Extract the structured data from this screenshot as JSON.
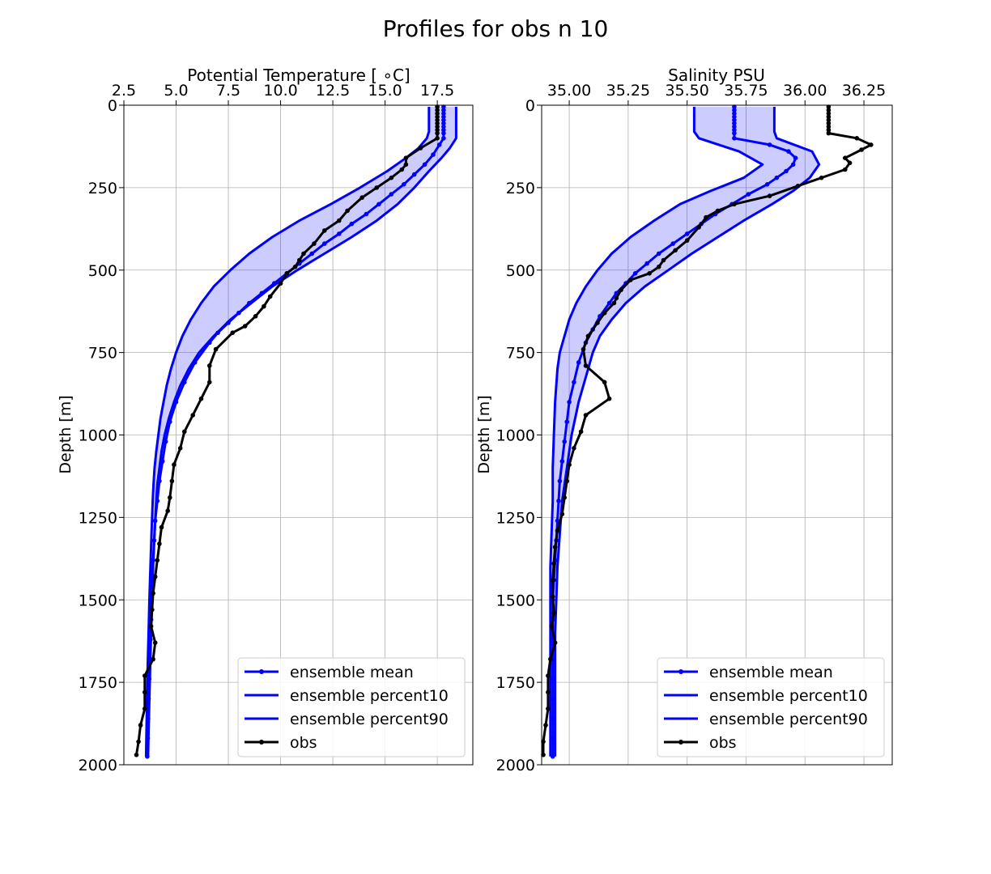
{
  "figure_title": "Profiles for obs n 10",
  "chart_data": [
    {
      "type": "line",
      "title": "Potential Temperature [$^\\circ$C]",
      "title_display": "Potential Temperature [ ∘C]",
      "xlabel": "",
      "ylabel": "Depth [m]",
      "xaxis_position": "top",
      "y_inverted": true,
      "xlim": [
        2.5,
        19.2
      ],
      "ylim": [
        2000,
        0
      ],
      "xticks": [
        "2.5",
        "5.0",
        "7.5",
        "10.0",
        "12.5",
        "15.0",
        "17.5"
      ],
      "yticks": [
        "0",
        "250",
        "500",
        "750",
        "1000",
        "1250",
        "1500",
        "1750",
        "2000"
      ],
      "grid": true,
      "legend_position": "lower-right",
      "series": [
        {
          "name": "ensemble mean",
          "color": "#0000ff",
          "marker": "dot",
          "depth": [
            5,
            15,
            25,
            35,
            45,
            55,
            65,
            75,
            85,
            100,
            120,
            150,
            180,
            210,
            240,
            270,
            300,
            330,
            360,
            390,
            420,
            450,
            480,
            510,
            540,
            570,
            600,
            630,
            660,
            690,
            720,
            780,
            840,
            900,
            960,
            1020,
            1080,
            1140,
            1200,
            1260,
            1320,
            1380,
            1440,
            1500,
            1560,
            1620,
            1680,
            1740,
            1800,
            1860,
            1920,
            1975
          ],
          "values": [
            17.8,
            17.8,
            17.8,
            17.8,
            17.8,
            17.8,
            17.8,
            17.8,
            17.8,
            17.8,
            17.6,
            17.3,
            16.9,
            16.4,
            15.9,
            15.3,
            14.7,
            14.1,
            13.4,
            12.8,
            12.1,
            11.5,
            10.9,
            10.3,
            9.7,
            9.1,
            8.5,
            8.0,
            7.5,
            7.0,
            6.6,
            5.9,
            5.4,
            5.0,
            4.7,
            4.5,
            4.35,
            4.2,
            4.1,
            4.0,
            3.95,
            3.9,
            3.85,
            3.82,
            3.8,
            3.77,
            3.74,
            3.71,
            3.68,
            3.66,
            3.64,
            3.62
          ]
        },
        {
          "name": "ensemble percent10",
          "color": "#0000ff",
          "marker": "none",
          "depth": [
            5,
            80,
            100,
            130,
            160,
            200,
            250,
            300,
            350,
            400,
            450,
            500,
            550,
            600,
            650,
            700,
            750,
            800,
            850,
            900,
            950,
            1000,
            1050,
            1100,
            1150,
            1200,
            1300,
            1400,
            1500,
            1600,
            1700,
            1800,
            1900,
            1975
          ],
          "values": [
            17.1,
            17.1,
            17.0,
            16.6,
            16.0,
            15.1,
            13.8,
            12.4,
            10.9,
            9.6,
            8.5,
            7.6,
            6.8,
            6.2,
            5.7,
            5.3,
            5.0,
            4.75,
            4.55,
            4.4,
            4.25,
            4.15,
            4.05,
            3.97,
            3.92,
            3.88,
            3.82,
            3.77,
            3.72,
            3.68,
            3.64,
            3.61,
            3.58,
            3.56
          ]
        },
        {
          "name": "ensemble percent90",
          "color": "#0000ff",
          "marker": "none",
          "depth": [
            5,
            80,
            100,
            130,
            160,
            200,
            250,
            300,
            350,
            400,
            450,
            500,
            550,
            600,
            650,
            700,
            750,
            800,
            850,
            900,
            950,
            1000,
            1050,
            1100,
            1150,
            1200,
            1300,
            1400,
            1500,
            1600,
            1700,
            1800,
            1900,
            1975
          ],
          "values": [
            18.4,
            18.4,
            18.4,
            18.1,
            17.7,
            17.1,
            16.4,
            15.6,
            14.6,
            13.4,
            12.1,
            10.8,
            9.6,
            8.6,
            7.6,
            6.8,
            6.1,
            5.6,
            5.2,
            4.9,
            4.65,
            4.45,
            4.3,
            4.2,
            4.1,
            4.05,
            3.97,
            3.9,
            3.85,
            3.8,
            3.76,
            3.72,
            3.68,
            3.66
          ]
        },
        {
          "name": "obs",
          "color": "#000000",
          "marker": "dot",
          "depth": [
            5,
            15,
            25,
            35,
            45,
            55,
            65,
            75,
            85,
            100,
            130,
            160,
            180,
            195,
            220,
            250,
            280,
            320,
            350,
            380,
            420,
            450,
            470,
            490,
            510,
            540,
            580,
            610,
            640,
            670,
            690,
            740,
            790,
            840,
            890,
            940,
            990,
            1040,
            1090,
            1140,
            1190,
            1230,
            1280,
            1330,
            1380,
            1430,
            1480,
            1530,
            1580,
            1630,
            1680,
            1730,
            1780,
            1830,
            1880,
            1930,
            1970
          ],
          "values": [
            17.5,
            17.5,
            17.5,
            17.5,
            17.5,
            17.5,
            17.5,
            17.5,
            17.5,
            17.5,
            16.7,
            16.0,
            16.0,
            15.8,
            15.3,
            14.6,
            13.9,
            13.2,
            12.8,
            12.1,
            11.6,
            11.1,
            10.9,
            10.7,
            10.3,
            10.0,
            9.5,
            9.2,
            8.8,
            8.3,
            7.7,
            6.9,
            6.6,
            6.6,
            6.2,
            5.8,
            5.4,
            5.2,
            4.9,
            4.8,
            4.7,
            4.6,
            4.3,
            4.2,
            4.1,
            4.0,
            3.9,
            3.85,
            3.8,
            4.0,
            3.9,
            3.5,
            3.5,
            3.5,
            3.3,
            3.2,
            3.1
          ]
        }
      ]
    },
    {
      "type": "line",
      "title": "Salinity PSU",
      "xlabel": "",
      "ylabel": "Depth [m]",
      "xaxis_position": "top",
      "y_inverted": true,
      "xlim": [
        34.883,
        36.37
      ],
      "ylim": [
        2000,
        0
      ],
      "xticks": [
        "35.00",
        "35.25",
        "35.50",
        "35.75",
        "36.00",
        "36.25"
      ],
      "yticks": [
        "0",
        "250",
        "500",
        "750",
        "1000",
        "1250",
        "1500",
        "1750",
        "2000"
      ],
      "grid": true,
      "legend_position": "lower-right",
      "series": [
        {
          "name": "ensemble mean",
          "color": "#0000ff",
          "marker": "dot",
          "depth": [
            5,
            15,
            25,
            35,
            45,
            55,
            65,
            75,
            85,
            100,
            120,
            140,
            160,
            180,
            200,
            220,
            240,
            270,
            300,
            330,
            360,
            390,
            420,
            450,
            480,
            510,
            540,
            570,
            600,
            640,
            680,
            720,
            780,
            840,
            900,
            960,
            1020,
            1080,
            1140,
            1200,
            1260,
            1320,
            1380,
            1440,
            1500,
            1560,
            1620,
            1680,
            1740,
            1800,
            1860,
            1920,
            1975
          ],
          "values": [
            35.7,
            35.7,
            35.7,
            35.7,
            35.7,
            35.7,
            35.7,
            35.7,
            35.7,
            35.7,
            35.85,
            35.93,
            35.96,
            35.95,
            35.92,
            35.88,
            35.84,
            35.76,
            35.69,
            35.62,
            35.56,
            35.5,
            35.44,
            35.38,
            35.33,
            35.28,
            35.24,
            35.2,
            35.17,
            35.13,
            35.1,
            35.07,
            35.04,
            35.02,
            35.0,
            34.99,
            34.98,
            34.97,
            34.96,
            34.955,
            34.95,
            34.945,
            34.94,
            34.935,
            34.93,
            34.93,
            34.93,
            34.93,
            34.93,
            34.93,
            34.93,
            34.93,
            34.93
          ]
        },
        {
          "name": "ensemble percent10",
          "color": "#0000ff",
          "marker": "none",
          "depth": [
            5,
            80,
            100,
            140,
            180,
            220,
            260,
            300,
            350,
            400,
            450,
            500,
            550,
            600,
            650,
            700,
            750,
            800,
            900,
            1000,
            1100,
            1200,
            1300,
            1400,
            1500,
            1600,
            1700,
            1800,
            1900,
            1975
          ],
          "values": [
            35.53,
            35.53,
            35.55,
            35.72,
            35.82,
            35.74,
            35.6,
            35.47,
            35.36,
            35.26,
            35.18,
            35.12,
            35.07,
            35.03,
            35.0,
            34.98,
            34.96,
            34.95,
            34.94,
            34.935,
            34.93,
            34.93,
            34.925,
            34.92,
            34.92,
            34.92,
            34.92,
            34.92,
            34.92,
            34.92
          ]
        },
        {
          "name": "ensemble percent90",
          "color": "#0000ff",
          "marker": "none",
          "depth": [
            5,
            80,
            100,
            140,
            180,
            220,
            260,
            300,
            350,
            400,
            450,
            500,
            550,
            600,
            650,
            700,
            750,
            800,
            900,
            1000,
            1100,
            1200,
            1300,
            1400,
            1500,
            1600,
            1700,
            1800,
            1900,
            1975
          ],
          "values": [
            35.87,
            35.87,
            35.88,
            36.03,
            36.06,
            36.02,
            35.95,
            35.86,
            35.74,
            35.63,
            35.52,
            35.42,
            35.32,
            35.24,
            35.18,
            35.13,
            35.1,
            35.08,
            35.04,
            35.01,
            34.99,
            34.97,
            34.96,
            34.95,
            34.945,
            34.94,
            34.94,
            34.94,
            34.94,
            34.94
          ]
        },
        {
          "name": "obs",
          "color": "#000000",
          "marker": "dot",
          "depth": [
            5,
            15,
            25,
            35,
            45,
            55,
            65,
            75,
            85,
            100,
            120,
            135,
            160,
            175,
            195,
            220,
            245,
            275,
            300,
            320,
            340,
            370,
            410,
            440,
            470,
            490,
            510,
            530,
            560,
            585,
            600,
            630,
            660,
            700,
            740,
            790,
            840,
            890,
            940,
            990,
            1040,
            1090,
            1140,
            1190,
            1240,
            1290,
            1340,
            1390,
            1440,
            1490,
            1540,
            1580,
            1630,
            1680,
            1730,
            1780,
            1830,
            1880,
            1930,
            1970
          ],
          "values": [
            36.1,
            36.1,
            36.1,
            36.1,
            36.1,
            36.1,
            36.1,
            36.1,
            36.1,
            36.22,
            36.28,
            36.24,
            36.17,
            36.19,
            36.17,
            36.07,
            35.97,
            35.85,
            35.7,
            35.63,
            35.58,
            35.55,
            35.5,
            35.45,
            35.4,
            35.38,
            35.34,
            35.26,
            35.22,
            35.2,
            35.19,
            35.15,
            35.12,
            35.08,
            35.06,
            35.07,
            35.15,
            35.17,
            35.07,
            35.05,
            35.02,
            35.0,
            34.99,
            34.98,
            34.97,
            34.95,
            34.94,
            34.935,
            34.93,
            34.93,
            34.935,
            34.925,
            34.94,
            34.92,
            34.91,
            34.91,
            34.91,
            34.9,
            34.89,
            34.89
          ]
        }
      ]
    }
  ]
}
